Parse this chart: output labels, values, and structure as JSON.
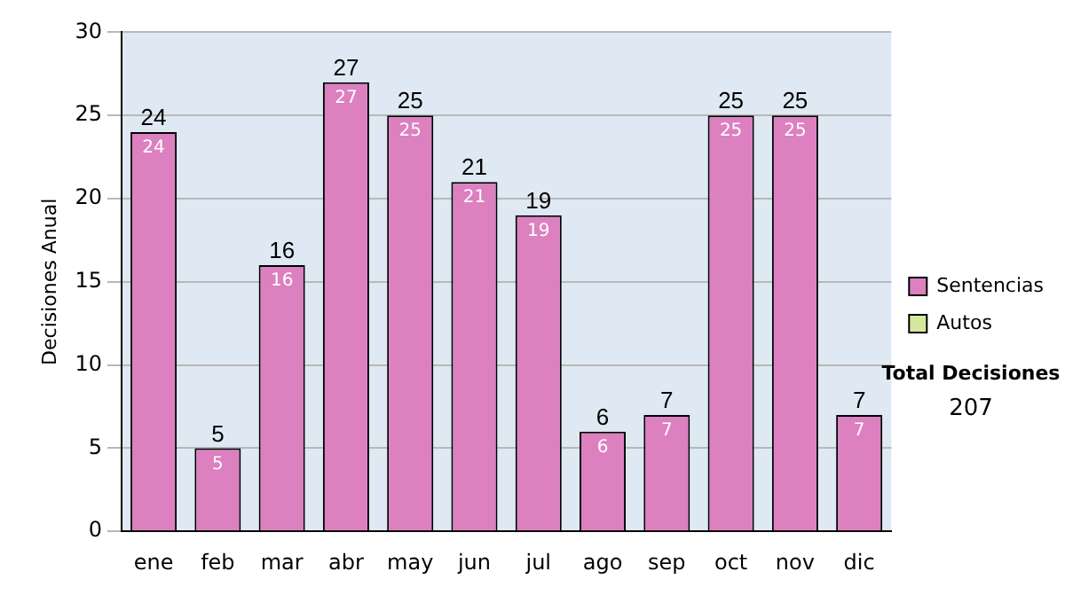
{
  "chart_data": {
    "type": "bar",
    "stacked": true,
    "ylabel": "Decisiones Anual",
    "categories": [
      "ene",
      "feb",
      "mar",
      "abr",
      "may",
      "jun",
      "jul",
      "ago",
      "sep",
      "oct",
      "nov",
      "dic"
    ],
    "series": [
      {
        "name": "Sentencias",
        "color": "#dd80c0",
        "values": [
          24,
          5,
          16,
          27,
          25,
          21,
          19,
          6,
          7,
          25,
          25,
          7
        ],
        "value_labels": [
          "24",
          "5",
          "16",
          "27",
          "25",
          "21",
          "19",
          "6",
          "7",
          "25",
          "25",
          "7"
        ]
      },
      {
        "name": "Autos",
        "color": "#d4e8a0",
        "values": [
          0,
          0,
          0,
          0,
          0,
          0,
          0,
          0,
          0,
          0,
          0,
          0
        ]
      }
    ],
    "totals": [
      "24",
      "5",
      "16",
      "27",
      "25",
      "21",
      "19",
      "6",
      "7",
      "25",
      "25",
      "7"
    ],
    "ylim": [
      0,
      30
    ],
    "yticks": [
      0,
      5,
      10,
      15,
      20,
      25,
      30
    ],
    "grid": "y",
    "legend": "right",
    "annotations": [
      "Total Decisiones",
      "207"
    ]
  }
}
